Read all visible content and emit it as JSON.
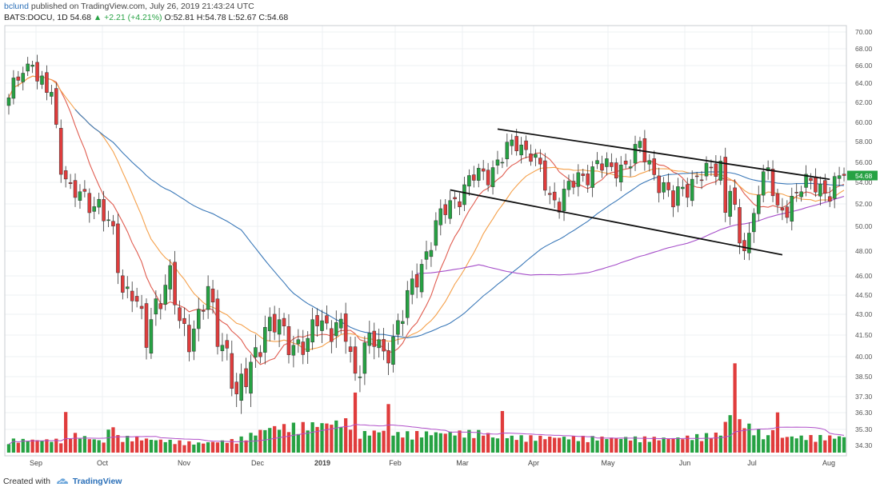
{
  "header": {
    "user": "bclund",
    "published": "published on TradingView.com, July 26, 2019 21:43:24 UTC",
    "symbol": "BATS:DOCU, 1D",
    "last": "54.68",
    "change": "▲ +2.21 (+4.21%)",
    "ohlc": "O:52.81 H:54.78 L:52.67 C:54.68"
  },
  "footer": {
    "created_with": "Created with",
    "brand": "TradingView"
  },
  "chart_data": {
    "type": "candlestick",
    "x_ticks": [
      "Sep",
      "Oct",
      "Nov",
      "Dec",
      "2019",
      "Feb",
      "Mar",
      "Apr",
      "May",
      "Jun",
      "Jul",
      "Aug"
    ],
    "y_ticks": [
      70.0,
      68.0,
      66.0,
      64.0,
      62.0,
      60.0,
      58.0,
      56.0,
      54.0,
      52.0,
      50.0,
      48.0,
      46.0,
      44.5,
      43.0,
      41.5,
      40.0,
      38.5,
      37.3,
      36.3,
      35.3,
      34.3
    ],
    "last_price_label": "54.68",
    "grid": true,
    "colors": {
      "up": "#26a243",
      "down": "#e03c3c",
      "ma_fast": "#e05c4f",
      "ma_mid": "#f5a04a",
      "ma_slow": "#3a78b8",
      "ma_long": "#a64fc9",
      "volume_ma": "#b04fc9",
      "trendline": "#111111",
      "last_label_bg": "#26a243"
    },
    "anchors": {
      "price": [
        [
          0,
          62
        ],
        [
          2,
          65
        ],
        [
          4,
          66
        ],
        [
          5,
          67
        ],
        [
          6,
          64
        ],
        [
          9,
          63
        ],
        [
          11,
          56
        ],
        [
          13,
          53
        ],
        [
          16,
          52.5
        ],
        [
          19,
          52
        ],
        [
          22,
          49
        ],
        [
          24,
          45
        ],
        [
          26,
          45
        ],
        [
          29,
          41
        ],
        [
          31,
          44
        ],
        [
          34,
          46
        ],
        [
          36,
          42
        ],
        [
          38,
          41.5
        ],
        [
          40,
          43
        ],
        [
          42,
          44.5
        ],
        [
          44,
          41.5
        ],
        [
          46,
          40.5
        ],
        [
          48,
          37
        ],
        [
          50,
          38.3
        ],
        [
          52,
          40.5
        ],
        [
          54,
          42
        ],
        [
          57,
          42
        ],
        [
          60,
          41
        ],
        [
          63,
          40.5
        ],
        [
          65,
          43
        ],
        [
          68,
          42
        ],
        [
          71,
          41.5
        ],
        [
          73,
          38.7
        ],
        [
          75,
          40.8
        ],
        [
          77,
          41
        ],
        [
          79,
          40
        ],
        [
          81,
          41.5
        ],
        [
          83,
          43
        ],
        [
          86,
          46
        ],
        [
          89,
          49
        ],
        [
          92,
          51.5
        ],
        [
          95,
          53
        ],
        [
          98,
          54.5
        ],
        [
          101,
          55
        ],
        [
          104,
          56.5
        ],
        [
          107,
          58
        ],
        [
          110,
          57
        ],
        [
          112,
          55
        ],
        [
          114,
          52.5
        ],
        [
          116,
          52.5
        ],
        [
          118,
          53.5
        ],
        [
          121,
          54.5
        ],
        [
          124,
          56
        ],
        [
          127,
          55
        ],
        [
          130,
          56
        ],
        [
          133,
          57.3
        ],
        [
          136,
          55
        ],
        [
          138,
          53.5
        ],
        [
          140,
          52
        ],
        [
          142,
          53.5
        ],
        [
          145,
          54.5
        ],
        [
          148,
          55
        ],
        [
          150,
          56
        ],
        [
          151,
          51.5
        ],
        [
          152,
          54
        ],
        [
          154,
          48
        ],
        [
          156,
          49
        ],
        [
          158,
          54
        ],
        [
          160,
          55
        ],
        [
          162,
          51
        ],
        [
          164,
          52
        ],
        [
          167,
          53.5
        ],
        [
          170,
          54
        ],
        [
          173,
          53
        ],
        [
          176,
          54.68
        ]
      ],
      "volume_shares": [
        [
          0,
          400000
        ],
        [
          11,
          400000
        ],
        [
          12,
          1150000
        ],
        [
          13,
          600000
        ],
        [
          20,
          350000
        ],
        [
          22,
          1000000
        ],
        [
          23,
          500000
        ],
        [
          40,
          300000
        ],
        [
          48,
          400000
        ],
        [
          55,
          800000
        ],
        [
          65,
          900000
        ],
        [
          72,
          1000000
        ],
        [
          73,
          1700000
        ],
        [
          74,
          600000
        ],
        [
          79,
          700000
        ],
        [
          80,
          1500000
        ],
        [
          81,
          600000
        ],
        [
          100,
          650000
        ],
        [
          103,
          450000
        ],
        [
          104,
          1300000
        ],
        [
          105,
          500000
        ],
        [
          140,
          450000
        ],
        [
          150,
          600000
        ],
        [
          151,
          950000
        ],
        [
          152,
          1200000
        ],
        [
          153,
          3000000
        ],
        [
          154,
          1000000
        ],
        [
          160,
          500000
        ],
        [
          162,
          1200000
        ],
        [
          163,
          500000
        ],
        [
          176,
          500000
        ]
      ]
    },
    "trendlines": [
      {
        "from": [
          103,
          59.3
        ],
        "to": [
          173,
          54.3
        ]
      },
      {
        "from": [
          93,
          53.3
        ],
        "to": [
          163,
          47.7
        ]
      }
    ]
  }
}
